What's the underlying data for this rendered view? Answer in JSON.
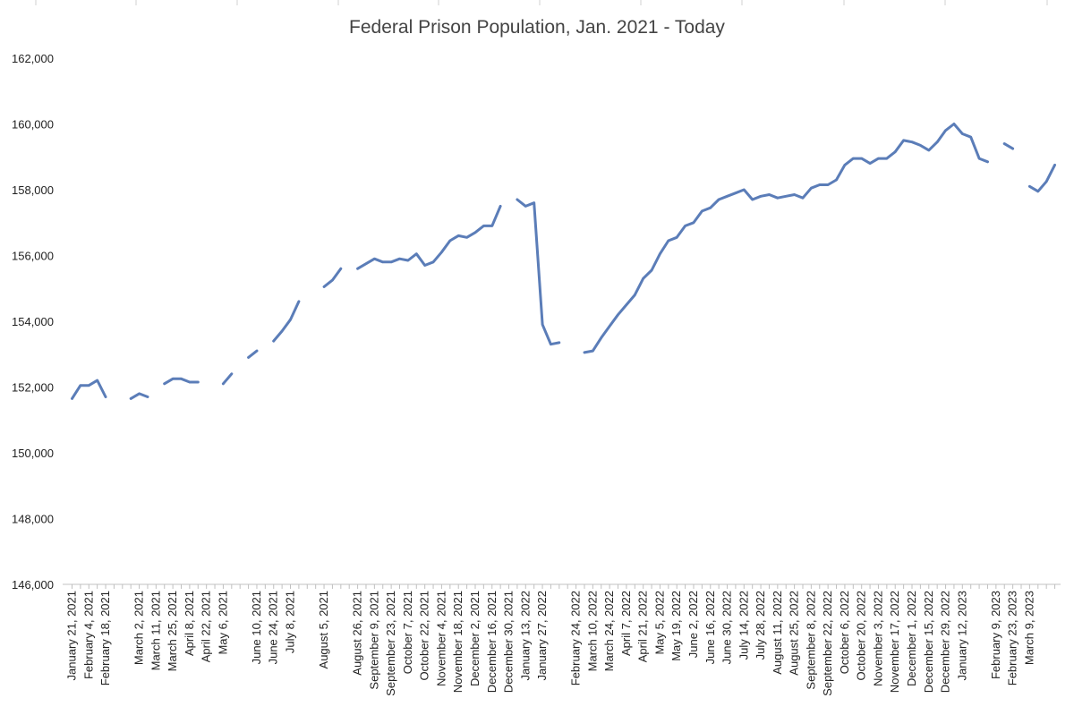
{
  "chart_data": {
    "type": "line",
    "title": "Federal Prison Population, Jan. 2021 - Today",
    "xlabel": "",
    "ylabel": "",
    "ylim": [
      146000,
      162000
    ],
    "y_ticks": [
      "146,000",
      "148,000",
      "150,000",
      "152,000",
      "154,000",
      "156,000",
      "158,000",
      "160,000",
      "162,000"
    ],
    "y_tick_values": [
      146000,
      148000,
      150000,
      152000,
      154000,
      156000,
      158000,
      160000,
      162000
    ],
    "grid": false,
    "legend": "none",
    "line_color": "#5B7DB8",
    "x_tick_labels": [
      {
        "i": 0,
        "label": "January 21, 2021"
      },
      {
        "i": 2,
        "label": "February 4, 2021"
      },
      {
        "i": 4,
        "label": "February 18, 2021"
      },
      {
        "i": 8,
        "label": "March 2, 2021"
      },
      {
        "i": 10,
        "label": "March 11, 2021"
      },
      {
        "i": 12,
        "label": "March 25, 2021"
      },
      {
        "i": 14,
        "label": "April 8, 2021"
      },
      {
        "i": 16,
        "label": "April 22, 2021"
      },
      {
        "i": 18,
        "label": "May 6, 2021"
      },
      {
        "i": 22,
        "label": "June 10, 2021"
      },
      {
        "i": 24,
        "label": "June 24, 2021"
      },
      {
        "i": 26,
        "label": "July 8, 2021"
      },
      {
        "i": 30,
        "label": "August 5, 2021"
      },
      {
        "i": 34,
        "label": "August 26, 2021"
      },
      {
        "i": 36,
        "label": "September 9, 2021"
      },
      {
        "i": 38,
        "label": "September 23, 2021"
      },
      {
        "i": 40,
        "label": "October 7, 2021"
      },
      {
        "i": 42,
        "label": "October 22, 2021"
      },
      {
        "i": 44,
        "label": "November 4, 2021"
      },
      {
        "i": 46,
        "label": "November 18, 2021"
      },
      {
        "i": 48,
        "label": "December 2, 2021"
      },
      {
        "i": 50,
        "label": "December 16, 2021"
      },
      {
        "i": 52,
        "label": "December 30, 2021"
      },
      {
        "i": 54,
        "label": "January 13, 2022"
      },
      {
        "i": 56,
        "label": "January 27, 2022"
      },
      {
        "i": 60,
        "label": "February 24, 2022"
      },
      {
        "i": 62,
        "label": "March 10, 2022"
      },
      {
        "i": 64,
        "label": "March 24, 2022"
      },
      {
        "i": 66,
        "label": "April 7, 2022"
      },
      {
        "i": 68,
        "label": "April 21, 2022"
      },
      {
        "i": 70,
        "label": "May 5, 2022"
      },
      {
        "i": 72,
        "label": "May 19, 2022"
      },
      {
        "i": 74,
        "label": "June 2, 2022"
      },
      {
        "i": 76,
        "label": "June 16, 2022"
      },
      {
        "i": 78,
        "label": "June 30, 2022"
      },
      {
        "i": 80,
        "label": "July 14, 2022"
      },
      {
        "i": 82,
        "label": "July 28, 2022"
      },
      {
        "i": 84,
        "label": "August 11, 2022"
      },
      {
        "i": 86,
        "label": "August 25, 2022"
      },
      {
        "i": 88,
        "label": "September 8, 2022"
      },
      {
        "i": 90,
        "label": "September 22, 2022"
      },
      {
        "i": 92,
        "label": "October 6, 2022"
      },
      {
        "i": 94,
        "label": "October 20, 2022"
      },
      {
        "i": 96,
        "label": "November 3, 2022"
      },
      {
        "i": 98,
        "label": "November 17, 2022"
      },
      {
        "i": 100,
        "label": "December 1, 2022"
      },
      {
        "i": 102,
        "label": "December 15, 2022"
      },
      {
        "i": 104,
        "label": "December 29, 2022"
      },
      {
        "i": 106,
        "label": "January 12, 2023"
      },
      {
        "i": 110,
        "label": "February 9, 2023"
      },
      {
        "i": 112,
        "label": "February 23, 2023"
      },
      {
        "i": 114,
        "label": "March 9, 2023"
      }
    ],
    "series": [
      {
        "values": [
          151650,
          152050,
          152050,
          152200,
          151700,
          null,
          null,
          151650,
          151800,
          151700,
          null,
          152100,
          152250,
          152250,
          152150,
          152150,
          null,
          null,
          152100,
          152400,
          null,
          152900,
          153100,
          null,
          153400,
          153700,
          154050,
          154600,
          null,
          null,
          155050,
          155250,
          155600,
          null,
          155600,
          155750,
          155900,
          155800,
          155800,
          155900,
          155850,
          156050,
          155700,
          155800,
          156100,
          156450,
          156600,
          156550,
          156700,
          156900,
          156900,
          157500,
          null,
          157700,
          157500,
          157600,
          153900,
          153300,
          153350,
          null,
          null,
          153050,
          153100,
          153500,
          153850,
          154200,
          154500,
          154800,
          155300,
          155550,
          156050,
          156450,
          156550,
          156900,
          157000,
          157350,
          157450,
          157700,
          157800,
          157900,
          158000,
          157700,
          157800,
          157850,
          157750,
          157800,
          157850,
          157750,
          158050,
          158150,
          158150,
          158300,
          158750,
          158950,
          158950,
          158800,
          158950,
          158950,
          159150,
          159500,
          159450,
          159350,
          159200,
          159450,
          159800,
          160000,
          159700,
          159600,
          158950,
          158850,
          null,
          159400,
          159250,
          null,
          158100,
          157950,
          158250,
          158750
        ]
      }
    ]
  }
}
